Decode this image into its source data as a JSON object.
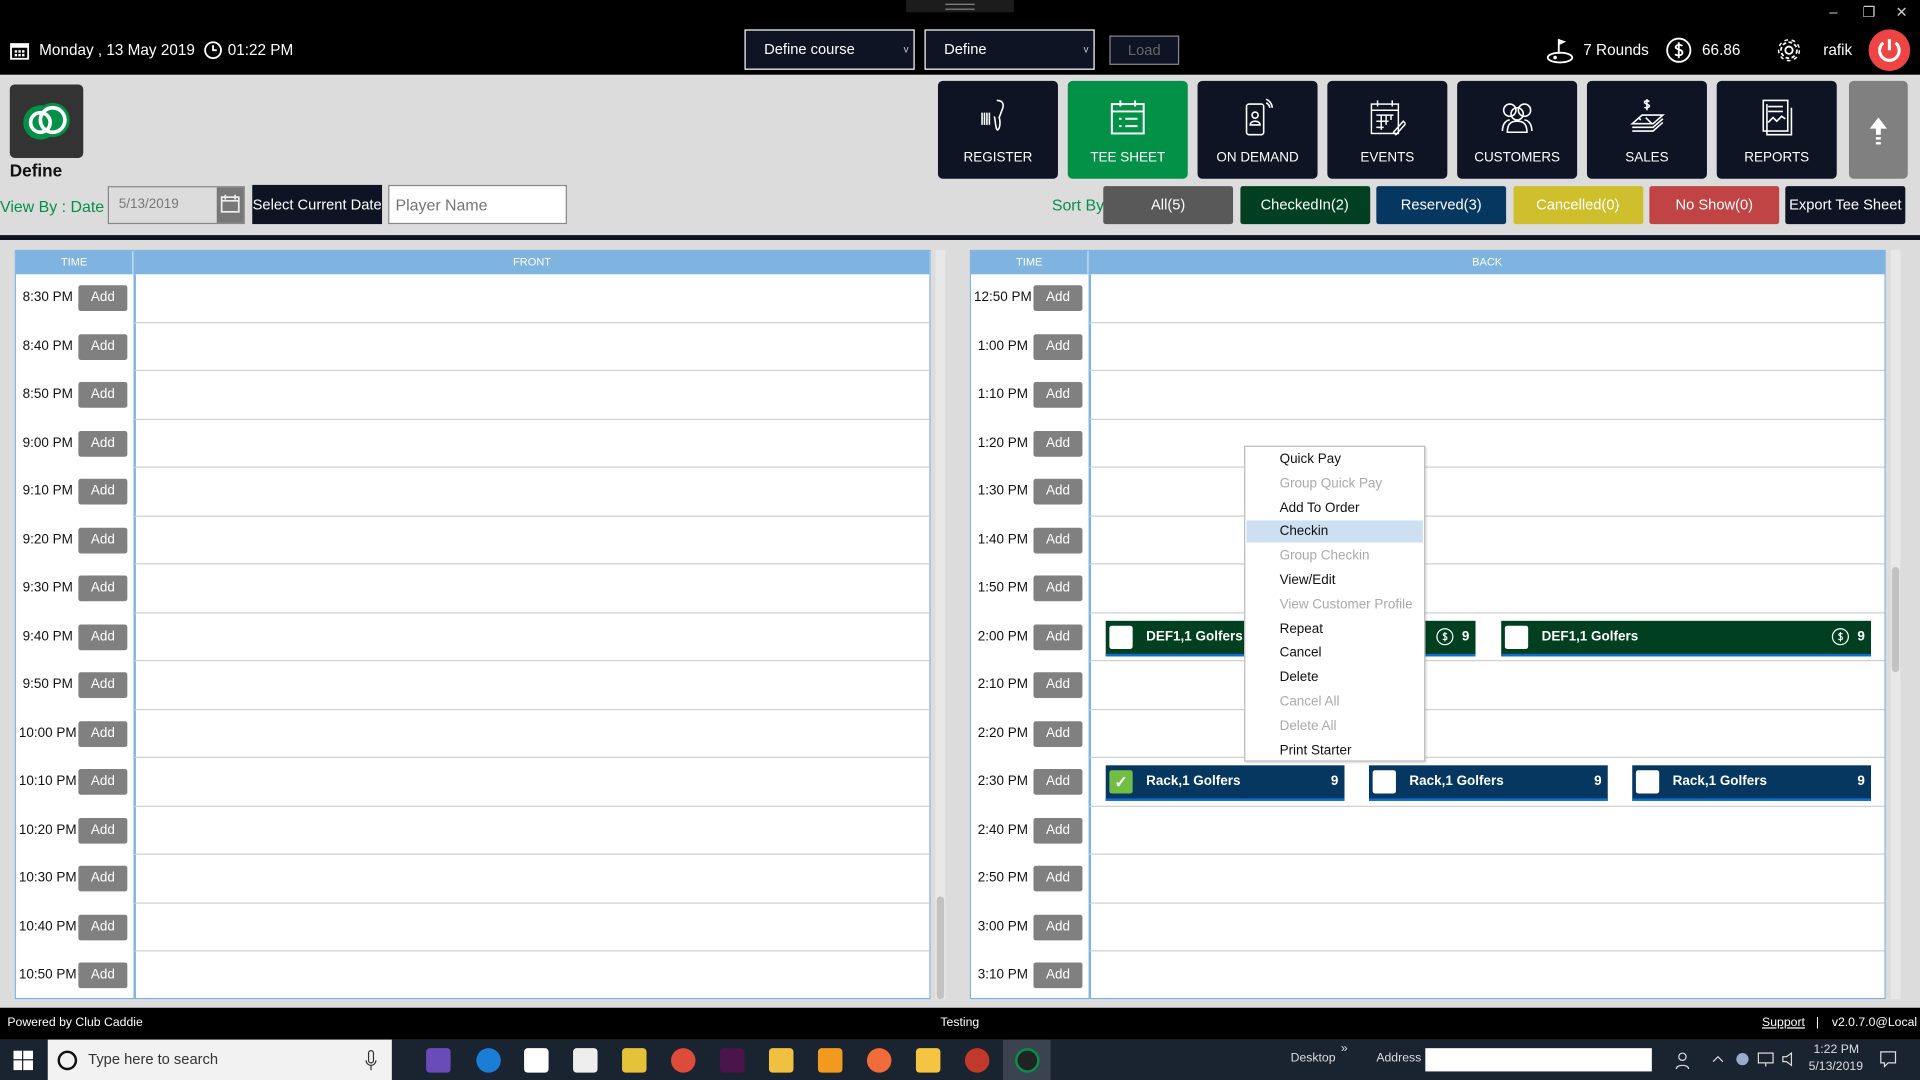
{
  "topbar": {
    "date": "Monday ,  13 May 2019",
    "time": "01:22 PM",
    "course_select": "Define course",
    "define_select": "Define",
    "load_label": "Load",
    "rounds": "7 Rounds",
    "balance": "66.86",
    "user": "rafik",
    "window_controls": {
      "minimize": "–",
      "restore": "❐",
      "close": "✕"
    }
  },
  "brand": {
    "name": "Define"
  },
  "nav": [
    {
      "label": "REGISTER",
      "icon": "barcode-scanner-icon"
    },
    {
      "label": "TEE SHEET",
      "icon": "tee-sheet-icon",
      "active": true
    },
    {
      "label": "ON DEMAND",
      "icon": "mobile-icon"
    },
    {
      "label": "EVENTS",
      "icon": "calendar-edit-icon"
    },
    {
      "label": "CUSTOMERS",
      "icon": "customers-icon"
    },
    {
      "label": "SALES",
      "icon": "sales-icon"
    },
    {
      "label": "REPORTS",
      "icon": "reports-icon"
    }
  ],
  "filters": {
    "view_by_label": "View By : Date",
    "date_value": "5/13/2019",
    "select_current_date": "Select Current Date",
    "player_placeholder": "Player Name",
    "sort_by_label": "Sort By",
    "sort_buttons": [
      {
        "label": "All(5)",
        "color": "#595959"
      },
      {
        "label": "CheckedIn(2)",
        "color": "#004020"
      },
      {
        "label": "Reserved(3)",
        "color": "#063760"
      },
      {
        "label": "Cancelled(0)",
        "color": "#d0bf2c"
      },
      {
        "label": "No Show(0)",
        "color": "#c04444"
      }
    ],
    "export_label": "Export Tee Sheet"
  },
  "front": {
    "time_header": "TIME",
    "title": "FRONT",
    "add_label": "Add",
    "times": [
      "8:30 PM",
      "8:40 PM",
      "8:50 PM",
      "9:00 PM",
      "9:10 PM",
      "9:20 PM",
      "9:30 PM",
      "9:40 PM",
      "9:50 PM",
      "10:00 PM",
      "10:10 PM",
      "10:20 PM",
      "10:30 PM",
      "10:40 PM",
      "10:50 PM"
    ]
  },
  "back": {
    "time_header": "TIME",
    "title": "BACK",
    "add_label": "Add",
    "times": [
      "12:50 PM",
      "1:00 PM",
      "1:10 PM",
      "1:20 PM",
      "1:30 PM",
      "1:40 PM",
      "1:50 PM",
      "2:00 PM",
      "2:10 PM",
      "2:20 PM",
      "2:30 PM",
      "2:40 PM",
      "2:50 PM",
      "3:00 PM",
      "3:10 PM"
    ],
    "bookings": [
      {
        "time": "2:00 PM",
        "name": "DEF1,1 Golfers",
        "holes": "9",
        "status": "checkedin",
        "paid_icon": true,
        "checked": false,
        "slot": 0
      },
      {
        "time": "2:00 PM",
        "name": "DEF1,1 Golfers",
        "holes": "9",
        "status": "checkedin",
        "paid_icon": true,
        "checked": false,
        "slot": 1
      },
      {
        "time": "2:30 PM",
        "name": "Rack,1 Golfers",
        "holes": "9",
        "status": "reserved",
        "paid_icon": false,
        "checked": true,
        "slot": 0
      },
      {
        "time": "2:30 PM",
        "name": "Rack,1 Golfers",
        "holes": "9",
        "status": "reserved",
        "paid_icon": false,
        "checked": false,
        "slot": 1
      },
      {
        "time": "2:30 PM",
        "name": "Rack,1 Golfers",
        "holes": "9",
        "status": "reserved",
        "paid_icon": false,
        "checked": false,
        "slot": 2
      }
    ]
  },
  "status_colors": {
    "checkedin": "#004020",
    "reserved": "#063760"
  },
  "context_menu": [
    {
      "label": "Quick Pay",
      "enabled": true
    },
    {
      "label": "Group Quick Pay",
      "enabled": false
    },
    {
      "label": "Add To Order",
      "enabled": true
    },
    {
      "label": "Checkin",
      "enabled": true,
      "highlighted": true
    },
    {
      "label": "Group Checkin",
      "enabled": false
    },
    {
      "label": "View/Edit",
      "enabled": true
    },
    {
      "label": "View Customer Profile",
      "enabled": false
    },
    {
      "label": "Repeat",
      "enabled": true
    },
    {
      "label": "Cancel",
      "enabled": true
    },
    {
      "label": "Delete",
      "enabled": true
    },
    {
      "label": "Cancel All",
      "enabled": false
    },
    {
      "label": "Delete All",
      "enabled": false
    },
    {
      "label": "Print Starter",
      "enabled": true
    }
  ],
  "footer": {
    "powered_by": "Powered by Club Caddie",
    "environment": "Testing",
    "support": "Support",
    "divider": "|",
    "version": "v2.0.7.0@Local"
  },
  "taskbar": {
    "search_placeholder": "Type here to search",
    "desktop": "Desktop",
    "chevron": "»",
    "address_label": "Address",
    "clock_time": "1:22 PM",
    "clock_date": "5/13/2019"
  }
}
